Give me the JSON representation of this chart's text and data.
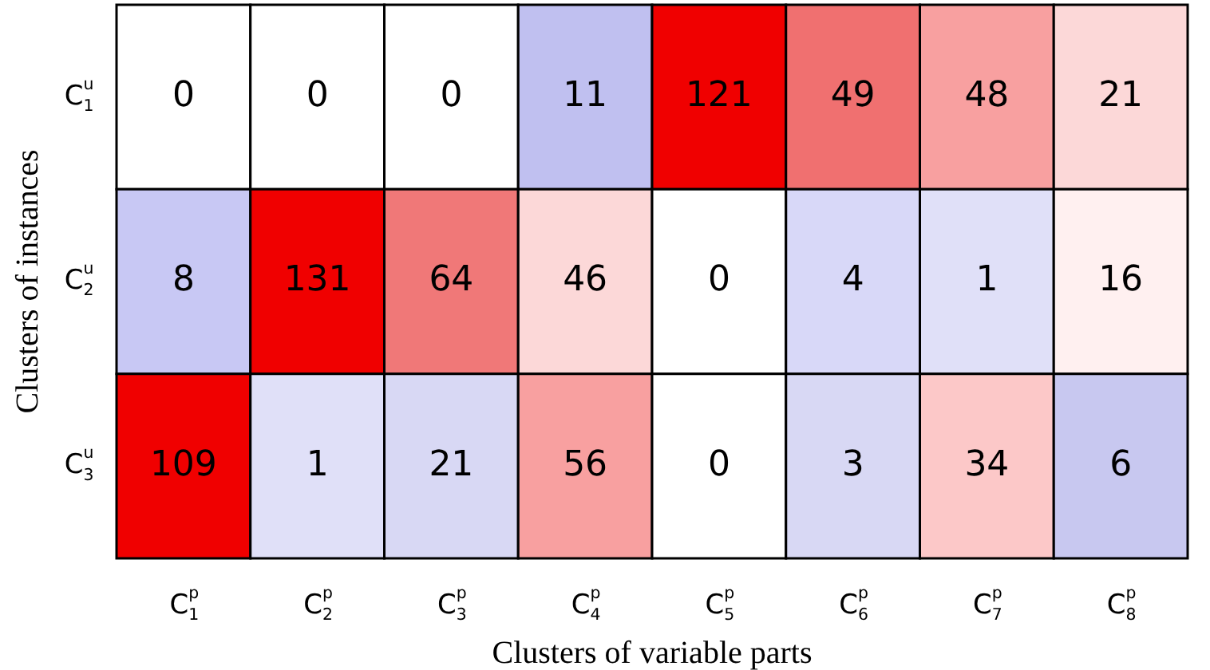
{
  "chart_data": {
    "type": "heatmap",
    "xlabel": "Clusters of variable parts",
    "ylabel": "Clusters of instances",
    "categories": [
      "C$^{p}$$_{1}$",
      "C$^{p}$$_{2}$",
      "C$^{p}$$_{3}$",
      "C$^{p}$$_{4}$",
      "C$^{p}$$_{5}$",
      "C$^{p}$$_{6}$",
      "C$^{p}$$_{7}$",
      "C$^{p}$$_{8}$"
    ],
    "y_categories": [
      "C$^{u}$$_{1}$",
      "C$^{u}$$_{2}$",
      "C$^{u}$$_{3}$"
    ],
    "cells": [
      [
        0,
        0,
        0,
        11,
        121,
        49,
        48,
        21
      ],
      [
        8,
        131,
        64,
        46,
        0,
        4,
        1,
        16
      ],
      [
        109,
        1,
        21,
        56,
        0,
        3,
        34,
        6
      ]
    ],
    "colors": [
      [
        "#ffffff",
        "#ffffff",
        "#ffffff",
        "#c0c0f0",
        "#f00000",
        "#f07070",
        "#f8a0a0",
        "#fcd8d8"
      ],
      [
        "#c8c8f4",
        "#f00000",
        "#f07878",
        "#fcd8d8",
        "#ffffff",
        "#d8d8f8",
        "#e0e0f8",
        "#fff0f0"
      ],
      [
        "#f00000",
        "#e0e0f8",
        "#d8d8f4",
        "#f8a0a0",
        "#ffffff",
        "#d8d8f4",
        "#fcc8c8",
        "#c8c8f0"
      ]
    ],
    "data_labels": true
  }
}
